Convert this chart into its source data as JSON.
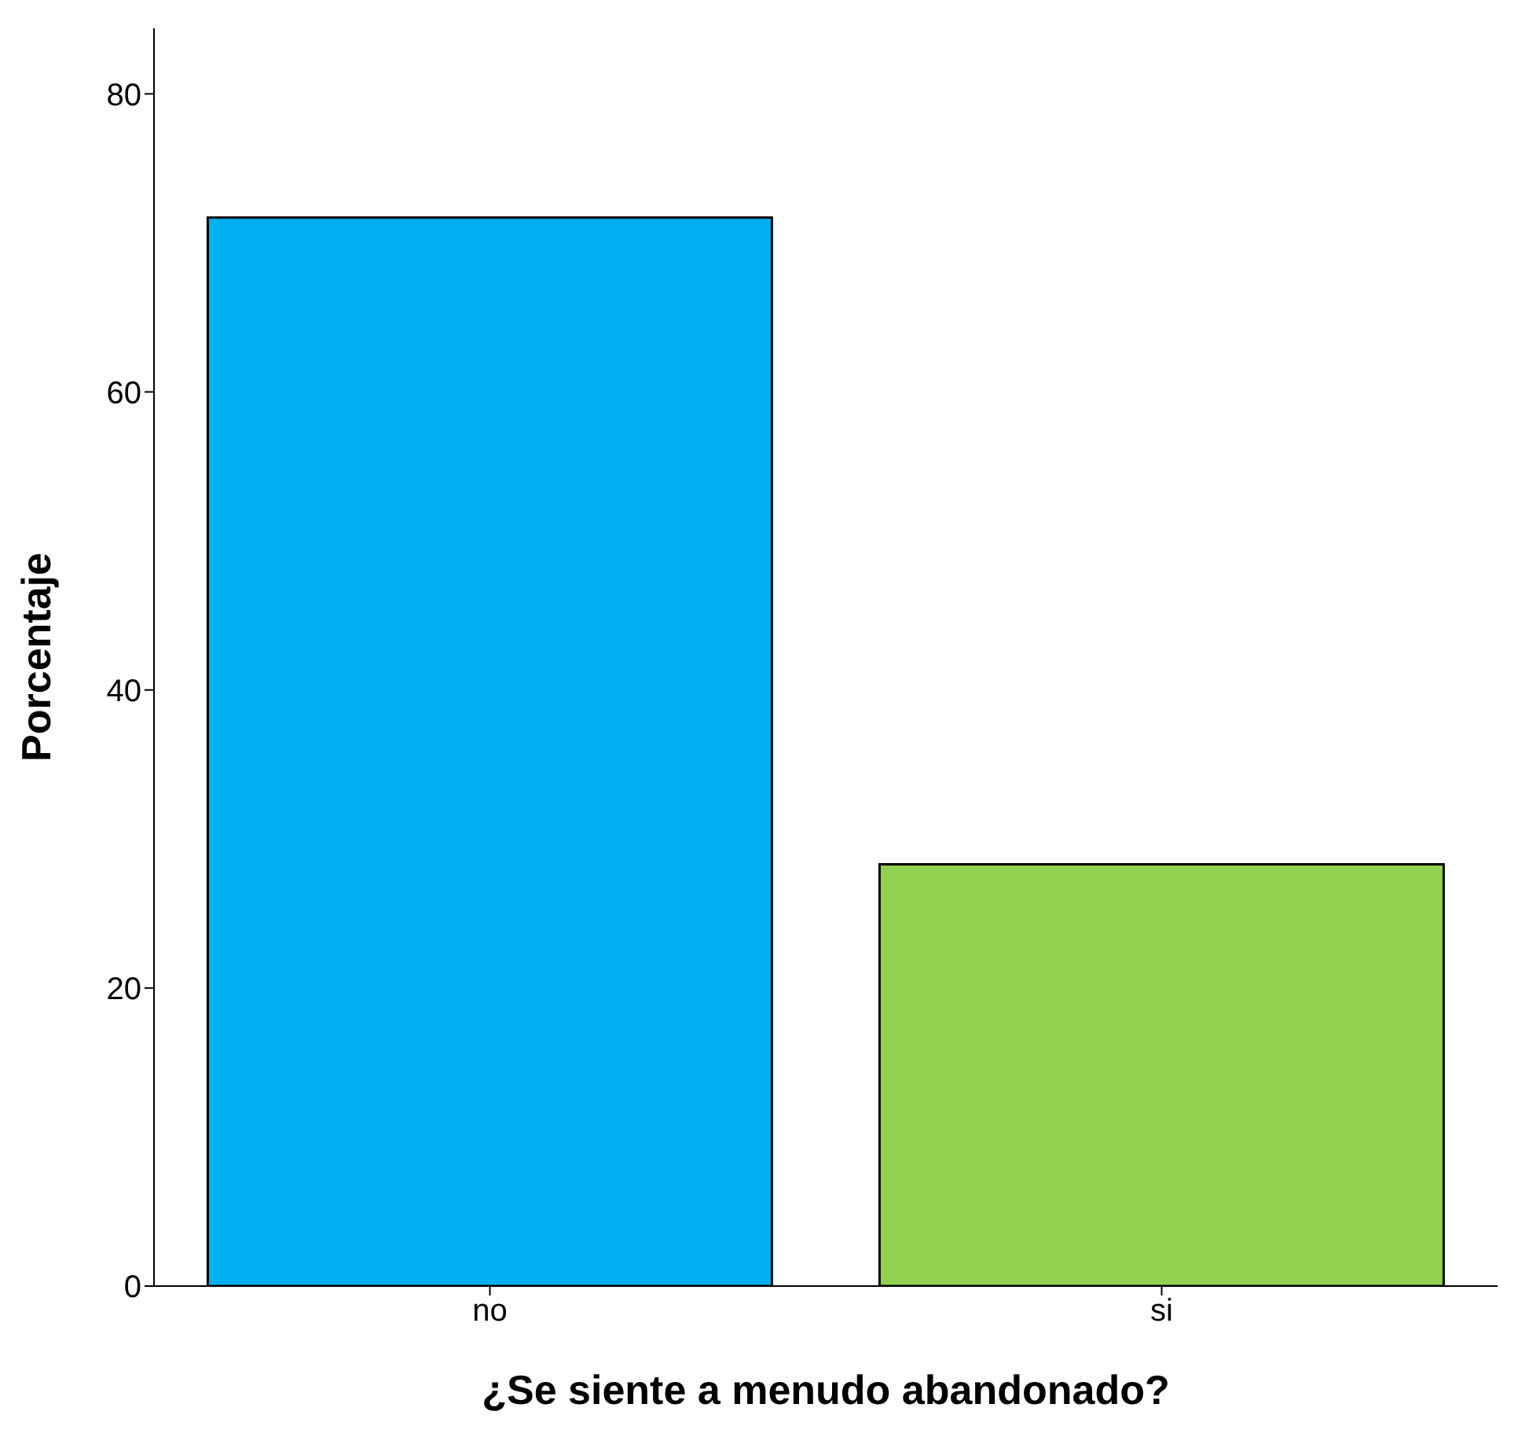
{
  "chart_data": {
    "type": "bar",
    "xlabel": "¿Se siente a menudo abandonado?",
    "ylabel": "Porcentaje",
    "categories": [
      "no",
      "si"
    ],
    "values": [
      71.7,
      28.3
    ],
    "colors": [
      "#00b0f0",
      "#92d050"
    ],
    "ylim": [
      0,
      84.4
    ],
    "yticks": [
      0,
      20,
      40,
      60,
      80
    ],
    "grid": false,
    "legend": false
  }
}
